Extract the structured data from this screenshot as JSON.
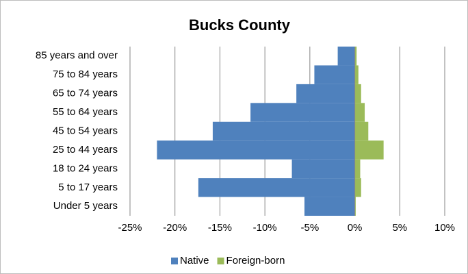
{
  "chart_data": {
    "type": "pyramid",
    "title": "Bucks County",
    "categories": [
      "Under 5 years",
      "5 to 17 years",
      "18 to 24 years",
      "25 to 44 years",
      "45 to 54 years",
      "55 to 64 years",
      "65 to 74 years",
      "75 to 84 years",
      "85 years and over"
    ],
    "series": [
      {
        "name": "Native",
        "color": "#4f81bd",
        "values": [
          -5.6,
          -17.4,
          -7.0,
          -22.0,
          -15.8,
          -11.6,
          -6.5,
          -4.5,
          -1.9
        ]
      },
      {
        "name": "Foreign-born",
        "color": "#9bbb59",
        "values": [
          0.1,
          0.7,
          0.6,
          3.2,
          1.5,
          1.1,
          0.7,
          0.4,
          0.2
        ]
      }
    ],
    "xlim": [
      -25,
      10
    ],
    "xticks": [
      {
        "value": -25,
        "label": "-25%"
      },
      {
        "value": -20,
        "label": "-20%"
      },
      {
        "value": -15,
        "label": "-15%"
      },
      {
        "value": -10,
        "label": "-10%"
      },
      {
        "value": -5,
        "label": "-5%"
      },
      {
        "value": 0,
        "label": "0%"
      },
      {
        "value": 5,
        "label": "5%"
      },
      {
        "value": 10,
        "label": "10%"
      }
    ],
    "grid": true,
    "legend": "bottom"
  }
}
